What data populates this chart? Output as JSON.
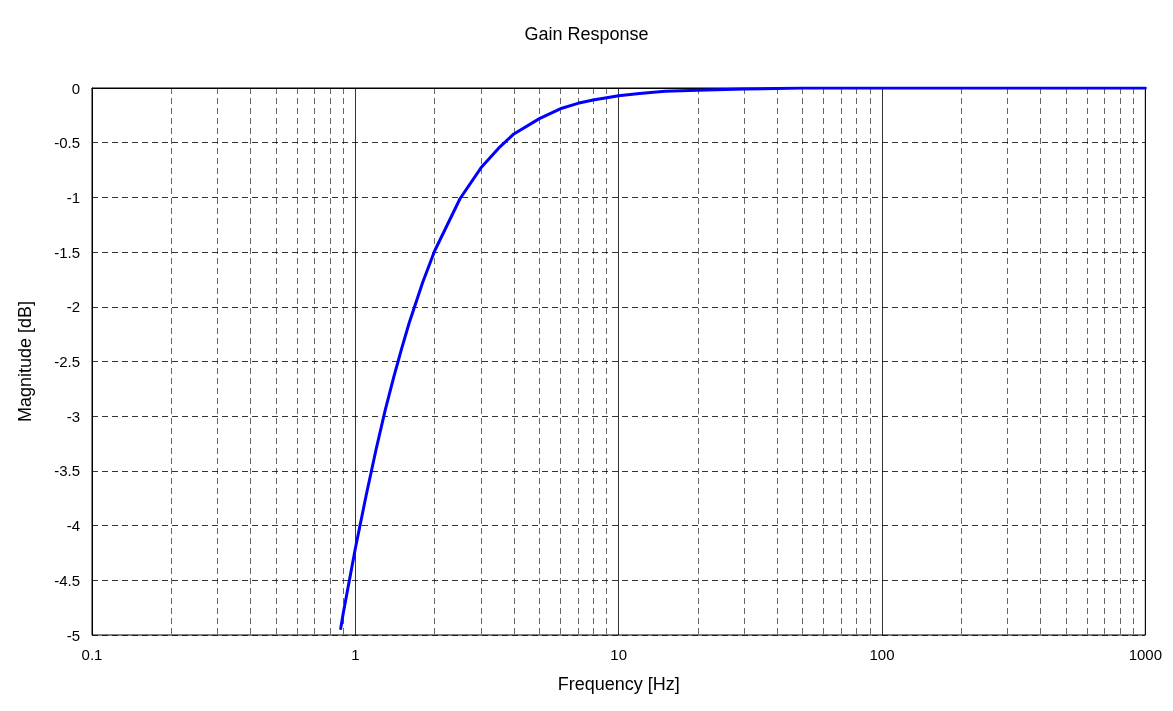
{
  "chart_data": {
    "type": "line",
    "title": "Gain Response",
    "xlabel": "Frequency [Hz]",
    "ylabel": "Magnitude [dB]",
    "x": [
      0.88,
      0.9,
      1,
      1.1,
      1.2,
      1.3,
      1.4,
      1.5,
      1.6,
      1.8,
      2,
      2.5,
      3,
      3.5,
      4,
      5,
      6,
      7,
      8,
      10,
      12,
      15,
      20,
      30,
      50,
      100,
      200,
      1000
    ],
    "series": [
      {
        "color": "#0000ff",
        "values": [
          -4.94,
          -4.8,
          -4.21,
          -3.72,
          -3.3,
          -2.94,
          -2.64,
          -2.38,
          -2.15,
          -1.78,
          -1.49,
          -1.01,
          -0.73,
          -0.55,
          -0.42,
          -0.28,
          -0.19,
          -0.14,
          -0.11,
          -0.07,
          -0.05,
          -0.03,
          -0.02,
          -0.01,
          0,
          0,
          0,
          0
        ]
      }
    ],
    "log": "x",
    "xlim": [
      0.1,
      1000
    ],
    "xticks": [
      0.1,
      1,
      10,
      100,
      1000
    ],
    "ylim": [
      -5,
      0
    ],
    "yticks": [
      0,
      -0.5,
      -1,
      -1.5,
      -2,
      -2.5,
      -3,
      -3.5,
      -4,
      -4.5,
      -5
    ],
    "grid": true,
    "marker": "none",
    "line_style": "solid"
  }
}
